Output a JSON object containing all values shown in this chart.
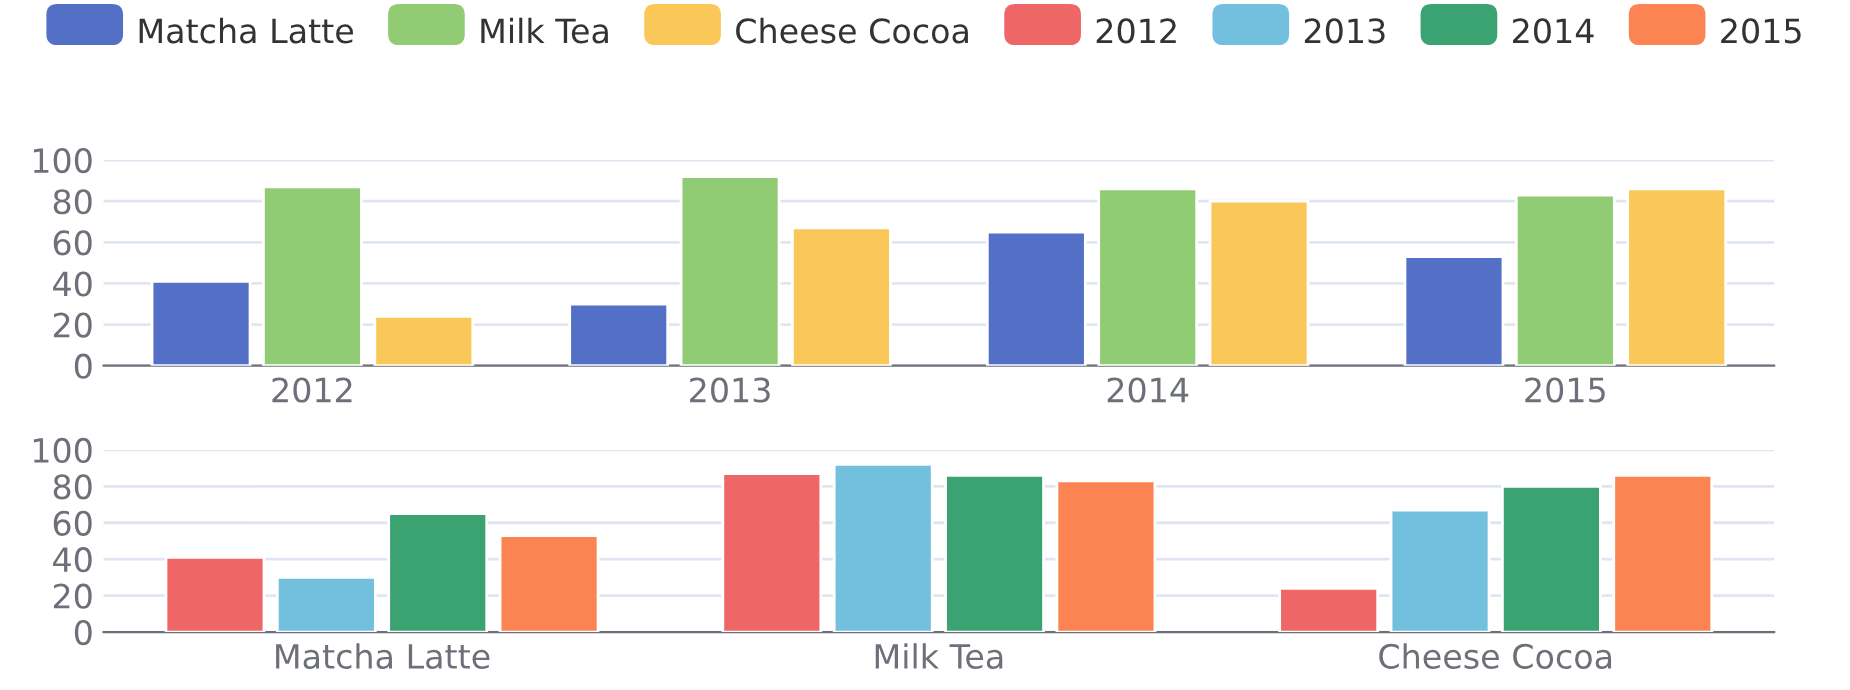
{
  "chart_data": [
    {
      "type": "bar",
      "categories": [
        "2012",
        "2013",
        "2014",
        "2015"
      ],
      "series": [
        {
          "name": "Matcha Latte",
          "color": "#5470c6",
          "values": [
            41,
            30,
            65,
            53
          ]
        },
        {
          "name": "Milk Tea",
          "color": "#91cc75",
          "values": [
            87,
            92,
            86,
            83
          ]
        },
        {
          "name": "Cheese Cocoa",
          "color": "#fac858",
          "values": [
            24,
            67,
            80,
            86
          ]
        }
      ],
      "ylim": [
        0,
        100
      ],
      "yticks": [
        0,
        20,
        40,
        60,
        80,
        100
      ],
      "grid": "y",
      "legend": "top"
    },
    {
      "type": "bar",
      "categories": [
        "Matcha Latte",
        "Milk Tea",
        "Cheese Cocoa"
      ],
      "series": [
        {
          "name": "2012",
          "color": "#ee6666",
          "values": [
            41,
            87,
            24
          ]
        },
        {
          "name": "2013",
          "color": "#73c0de",
          "values": [
            30,
            92,
            67
          ]
        },
        {
          "name": "2014",
          "color": "#3ba272",
          "values": [
            65,
            86,
            80
          ]
        },
        {
          "name": "2015",
          "color": "#fc8452",
          "values": [
            53,
            83,
            86
          ]
        }
      ],
      "ylim": [
        0,
        100
      ],
      "yticks": [
        0,
        20,
        40,
        60,
        80,
        100
      ],
      "grid": "y",
      "legend": "top"
    }
  ]
}
